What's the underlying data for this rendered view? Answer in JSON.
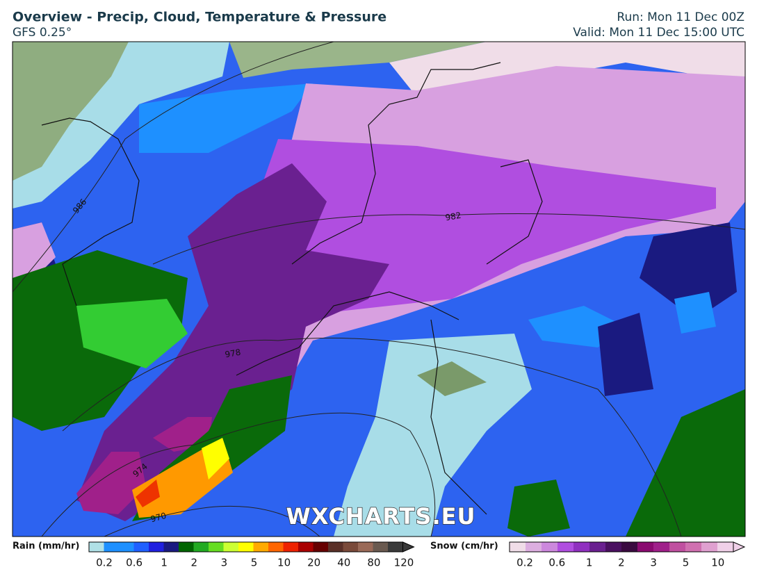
{
  "header": {
    "title": "Overview - Precip, Cloud, Temperature & Pressure",
    "model": "GFS 0.25°",
    "run": "Run: Mon 11 Dec 00Z",
    "valid": "Valid: Mon 11 Dec 15:00 UTC"
  },
  "map": {
    "watermark": "WXCHARTS.EU",
    "isobar_labels": [
      986,
      982,
      978,
      974,
      970
    ]
  },
  "legend": {
    "rain": {
      "title": "Rain (mm/hr)",
      "ticks": [
        0.2,
        0.6,
        1,
        2,
        3,
        5,
        10,
        20,
        40,
        80,
        120
      ]
    },
    "snow": {
      "title": "Snow (cm/hr)",
      "ticks": [
        0.2,
        0.6,
        1,
        2,
        3,
        5,
        10
      ]
    }
  }
}
